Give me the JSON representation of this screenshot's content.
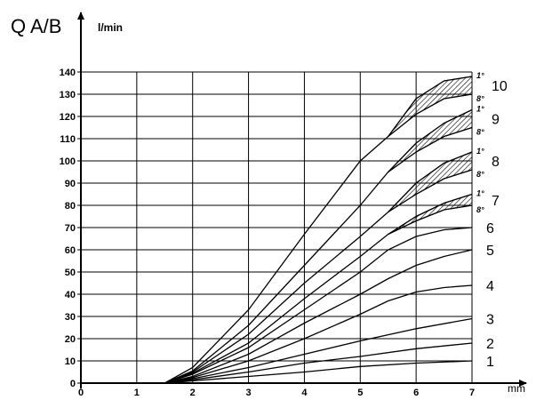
{
  "chart_data": {
    "type": "line",
    "title": "",
    "ylabel": "Q A/B",
    "yunit": "l/min",
    "xunit": "mm",
    "xlim": [
      0,
      7
    ],
    "ylim": [
      0,
      140
    ],
    "xticks": [
      "0",
      "1",
      "2",
      "3",
      "4",
      "5",
      "6",
      "7"
    ],
    "yticks": [
      "0",
      "10",
      "20",
      "30",
      "40",
      "50",
      "60",
      "70",
      "80",
      "90",
      "100",
      "110",
      "120",
      "130",
      "140"
    ],
    "grid": true,
    "series": [
      {
        "name": "1",
        "points": [
          [
            1.5,
            0
          ],
          [
            2,
            1
          ],
          [
            3,
            3
          ],
          [
            4,
            5
          ],
          [
            5,
            7.5
          ],
          [
            6,
            9
          ],
          [
            7,
            10
          ]
        ]
      },
      {
        "name": "2",
        "points": [
          [
            1.5,
            0
          ],
          [
            2,
            1.5
          ],
          [
            3,
            5
          ],
          [
            4,
            9
          ],
          [
            5,
            12
          ],
          [
            6,
            15.5
          ],
          [
            7,
            18
          ]
        ]
      },
      {
        "name": "3",
        "points": [
          [
            1.5,
            0
          ],
          [
            2,
            2
          ],
          [
            3,
            7
          ],
          [
            4,
            13
          ],
          [
            5,
            19
          ],
          [
            6,
            24.5
          ],
          [
            7,
            29
          ]
        ]
      },
      {
        "name": "4",
        "points": [
          [
            1.5,
            0
          ],
          [
            2,
            2.5
          ],
          [
            3,
            10
          ],
          [
            4,
            20
          ],
          [
            5,
            31
          ],
          [
            5.5,
            37
          ],
          [
            6,
            41
          ],
          [
            6.5,
            43
          ],
          [
            7,
            44
          ]
        ]
      },
      {
        "name": "5",
        "points": [
          [
            1.5,
            0
          ],
          [
            2,
            3
          ],
          [
            3,
            13
          ],
          [
            4,
            27
          ],
          [
            5,
            40
          ],
          [
            5.5,
            47
          ],
          [
            6,
            53
          ],
          [
            6.5,
            57
          ],
          [
            7,
            60
          ]
        ]
      },
      {
        "name": "6",
        "points": [
          [
            1.5,
            0
          ],
          [
            2,
            4
          ],
          [
            3,
            16
          ],
          [
            4,
            33
          ],
          [
            5,
            50
          ],
          [
            5.5,
            60
          ],
          [
            6,
            66
          ],
          [
            6.5,
            69
          ],
          [
            7,
            70
          ]
        ]
      },
      {
        "name": "7",
        "band": true,
        "upper_label": "1°",
        "lower_label": "8°",
        "points": [
          [
            1.5,
            0
          ],
          [
            2,
            4.5
          ],
          [
            3,
            18
          ],
          [
            4,
            38
          ],
          [
            5,
            57
          ],
          [
            5.5,
            67
          ],
          [
            6,
            73
          ],
          [
            6.5,
            78
          ],
          [
            7,
            80
          ]
        ],
        "upper": [
          [
            5.5,
            67
          ],
          [
            6,
            75
          ],
          [
            6.5,
            81
          ],
          [
            7,
            85
          ]
        ]
      },
      {
        "name": "8",
        "band": true,
        "upper_label": "1°",
        "lower_label": "8°",
        "points": [
          [
            1.5,
            0
          ],
          [
            2,
            5
          ],
          [
            3,
            22
          ],
          [
            4,
            45
          ],
          [
            5,
            66
          ],
          [
            5.5,
            77
          ],
          [
            6,
            85
          ],
          [
            6.5,
            92
          ],
          [
            7,
            96
          ]
        ],
        "upper": [
          [
            5.5,
            77
          ],
          [
            6,
            90
          ],
          [
            6.5,
            99
          ],
          [
            7,
            104
          ]
        ]
      },
      {
        "name": "9",
        "band": true,
        "upper_label": "1°",
        "lower_label": "8°",
        "points": [
          [
            1.5,
            0
          ],
          [
            2,
            5.5
          ],
          [
            3,
            26
          ],
          [
            4,
            53
          ],
          [
            5,
            80
          ],
          [
            5.5,
            95
          ],
          [
            6,
            104
          ],
          [
            6.5,
            111
          ],
          [
            7,
            115
          ]
        ],
        "upper": [
          [
            5.5,
            95
          ],
          [
            6,
            108
          ],
          [
            6.5,
            117
          ],
          [
            7,
            123
          ]
        ]
      },
      {
        "name": "10",
        "band": true,
        "upper_label": "1°",
        "lower_label": "8°",
        "points": [
          [
            1.5,
            0
          ],
          [
            2,
            7
          ],
          [
            3,
            33
          ],
          [
            4,
            67
          ],
          [
            5,
            100
          ],
          [
            5.5,
            111
          ],
          [
            6,
            121
          ],
          [
            6.5,
            128
          ],
          [
            7,
            130
          ]
        ],
        "upper": [
          [
            5.5,
            111
          ],
          [
            6,
            128
          ],
          [
            6.5,
            136
          ],
          [
            7,
            138
          ]
        ]
      }
    ]
  }
}
